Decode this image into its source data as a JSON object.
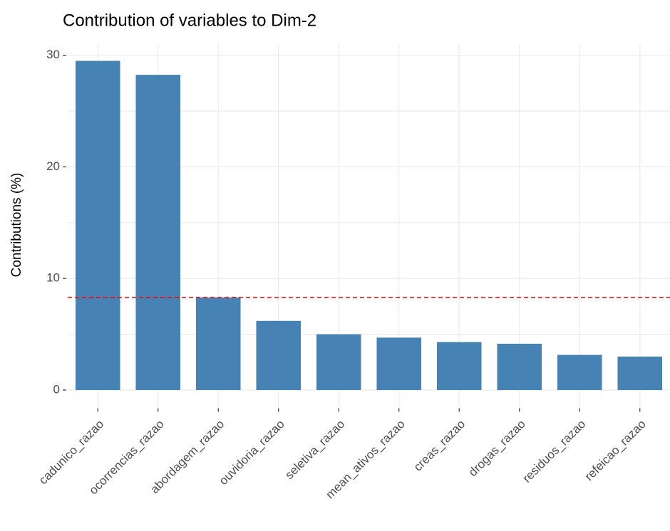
{
  "chart_data": {
    "type": "bar",
    "title": "Contribution of variables to Dim-2",
    "ylabel": "Contributions (%)",
    "categories": [
      "cadunico_razao",
      "ocorrencias_razao",
      "abordagem_razao",
      "ouvidoria_razao",
      "seletiva_razao",
      "mean_ativos_razao",
      "creas_razao",
      "drogas_razao",
      "residuos_razao",
      "refeicao_razao"
    ],
    "values": [
      29.5,
      28.25,
      8.3,
      6.2,
      5.0,
      4.7,
      4.3,
      4.15,
      3.15,
      3.0
    ],
    "color": "#4682b4",
    "ylim": [
      -1.5,
      31.0
    ],
    "yticks": [
      0,
      10,
      20,
      30
    ],
    "yticks_minor": [
      5,
      15,
      25
    ],
    "grid": true,
    "hline": {
      "value": 8.3,
      "color": "#ff0000",
      "style": "dashed"
    }
  }
}
